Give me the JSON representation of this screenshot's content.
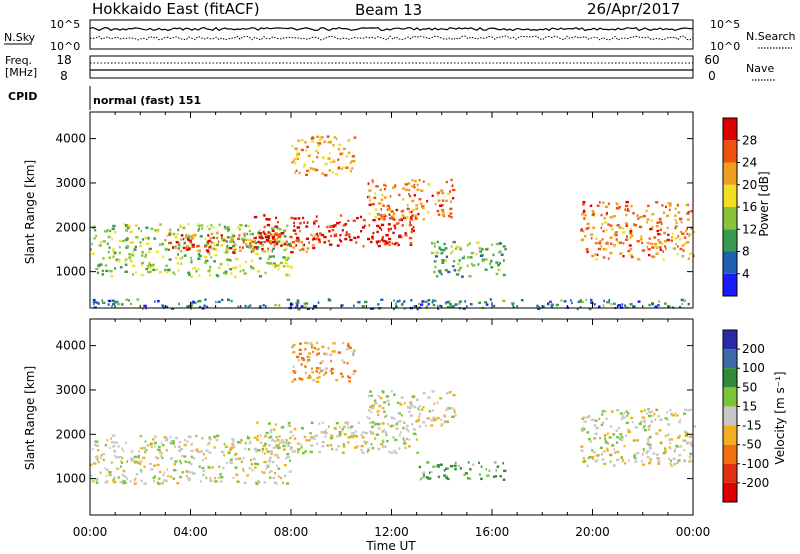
{
  "header": {
    "title": "Hokkaido East (fitACF)",
    "beam": "Beam 13",
    "date": "26/Apr/2017"
  },
  "top_panels": {
    "nsky_label": "N.Sky",
    "nsearch_label": "N.Search",
    "noise_ticks_left": [
      "10^5",
      "10^0"
    ],
    "noise_ticks_right": [
      "10^5",
      "10^0"
    ],
    "freq_label_top": "Freq.",
    "freq_label_unit": "[MHz]",
    "freq_ticks": [
      "18",
      "8"
    ],
    "nave_label": "Nave",
    "nave_ticks": [
      "60",
      "0"
    ],
    "cpid_label": "CPID",
    "cpid_value": "normal (fast) 151"
  },
  "chart_data": [
    {
      "type": "heatmap",
      "name": "power",
      "ylabel": "Slant Range [km]",
      "xlabel": "Time UT",
      "x_ticks": [
        "00:00",
        "04:00",
        "08:00",
        "12:00",
        "16:00",
        "20:00",
        "00:00"
      ],
      "xlim_hours": [
        0,
        24
      ],
      "y_ticks": [
        1000,
        2000,
        3000,
        4000
      ],
      "ylim_km": [
        180,
        4600
      ],
      "colorbar": {
        "label": "Power [dB]",
        "ticks": [
          4,
          8,
          12,
          16,
          20,
          24,
          28
        ],
        "range": [
          0,
          32
        ],
        "colors": [
          "#1a1aff",
          "#2060b0",
          "#3a9a50",
          "#88c43a",
          "#f0e020",
          "#f0a020",
          "#f05010",
          "#dd0000"
        ]
      },
      "echo_regions": [
        {
          "t": [
            0.0,
            8.0
          ],
          "r": [
            900,
            2100
          ],
          "power_db": 14
        },
        {
          "t": [
            3.0,
            9.0
          ],
          "r": [
            1450,
            1900
          ],
          "power_db": 26
        },
        {
          "t": [
            6.5,
            13.0
          ],
          "r": [
            1600,
            2300
          ],
          "power_db": 29
        },
        {
          "t": [
            11.0,
            14.5
          ],
          "r": [
            2200,
            3100
          ],
          "power_db": 24
        },
        {
          "t": [
            8.0,
            10.5
          ],
          "r": [
            3200,
            4100
          ],
          "power_db": 22
        },
        {
          "t": [
            13.5,
            16.5
          ],
          "r": [
            900,
            1700
          ],
          "power_db": 12
        },
        {
          "t": [
            19.5,
            24.0
          ],
          "r": [
            1300,
            2600
          ],
          "power_db": 24
        },
        {
          "t": [
            0.0,
            24.0
          ],
          "r": [
            180,
            400
          ],
          "power_db": 8
        }
      ]
    },
    {
      "type": "heatmap",
      "name": "velocity",
      "ylabel": "Slant Range [km]",
      "xlabel": "Time UT",
      "x_ticks": [
        "00:00",
        "04:00",
        "08:00",
        "12:00",
        "16:00",
        "20:00",
        "00:00"
      ],
      "xlim_hours": [
        0,
        24
      ],
      "y_ticks": [
        1000,
        2000,
        3000,
        4000
      ],
      "ylim_km": [
        180,
        4600
      ],
      "colorbar": {
        "label": "Velocity [m s⁻¹]",
        "ticks": [
          "200",
          "100",
          "50",
          "15",
          "-15",
          "-50",
          "-100",
          "-200"
        ],
        "colors": [
          "#2a2aa8",
          "#3a6aa8",
          "#2f8a3a",
          "#7ac43a",
          "#c8c8c8",
          "#f0b020",
          "#f07010",
          "#e03010",
          "#dd0000"
        ]
      },
      "echo_regions": [
        {
          "t": [
            0.0,
            8.0
          ],
          "r": [
            900,
            2000
          ],
          "velocity": 0
        },
        {
          "t": [
            6.5,
            13.0
          ],
          "r": [
            1600,
            2300
          ],
          "velocity": 0
        },
        {
          "t": [
            11.0,
            14.5
          ],
          "r": [
            2200,
            3000
          ],
          "velocity": 0
        },
        {
          "t": [
            13.0,
            16.5
          ],
          "r": [
            1000,
            1400
          ],
          "velocity": 40
        },
        {
          "t": [
            8.0,
            10.5
          ],
          "r": [
            3200,
            4100
          ],
          "velocity": -30
        },
        {
          "t": [
            19.5,
            24.0
          ],
          "r": [
            1300,
            2600
          ],
          "velocity": 0
        }
      ]
    }
  ]
}
